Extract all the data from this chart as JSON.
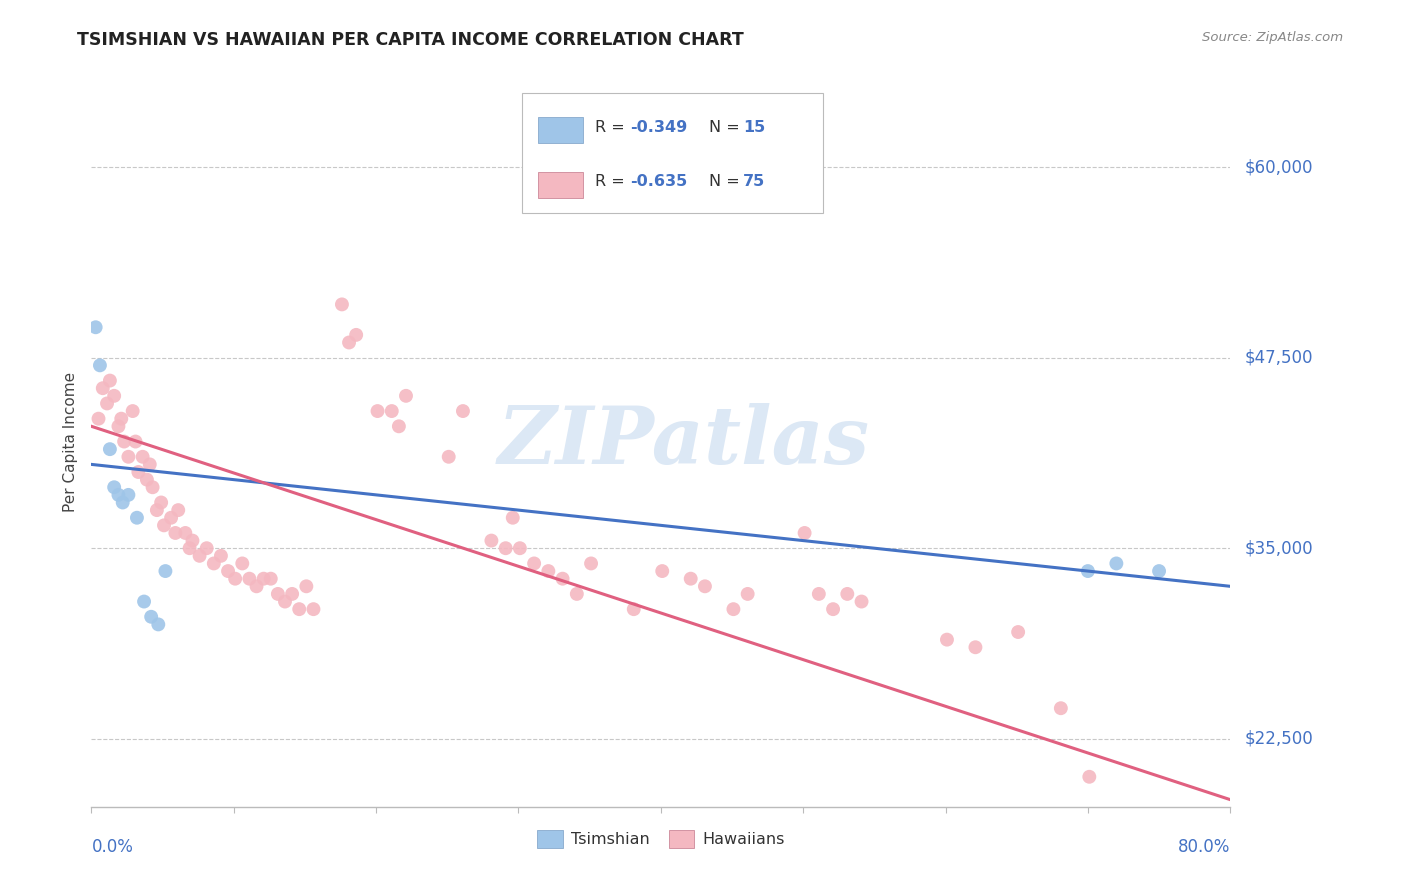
{
  "title": "TSIMSHIAN VS HAWAIIAN PER CAPITA INCOME CORRELATION CHART",
  "source": "Source: ZipAtlas.com",
  "ylabel": "Per Capita Income",
  "yticks": [
    22500,
    35000,
    47500,
    60000
  ],
  "ytick_labels": [
    "$22,500",
    "$35,000",
    "$47,500",
    "$60,000"
  ],
  "xlim": [
    0.0,
    0.8
  ],
  "ylim": [
    18000,
    66000
  ],
  "background_color": "#ffffff",
  "grid_color": "#c8c8c8",
  "watermark_text": "ZIPatlas",
  "watermark_color": "#dce8f5",
  "label_color": "#4472c4",
  "tsimshian_color": "#9fc5e8",
  "hawaiian_color": "#f4b8c1",
  "tsimshian_line_color": "#4472c4",
  "hawaiian_line_color": "#e06080",
  "legend_R1": "R = -0.349",
  "legend_N1": "N = 15",
  "legend_R2": "R = -0.635",
  "legend_N2": "N = 75",
  "tsimshian_line_x": [
    0.0,
    0.8
  ],
  "tsimshian_line_y": [
    40500,
    32500
  ],
  "hawaiian_line_x": [
    0.0,
    0.8
  ],
  "hawaiian_line_y": [
    43000,
    18500
  ],
  "tsimshian_points": [
    [
      0.003,
      49500
    ],
    [
      0.006,
      47000
    ],
    [
      0.013,
      41500
    ],
    [
      0.016,
      39000
    ],
    [
      0.019,
      38500
    ],
    [
      0.022,
      38000
    ],
    [
      0.026,
      38500
    ],
    [
      0.032,
      37000
    ],
    [
      0.037,
      31500
    ],
    [
      0.042,
      30500
    ],
    [
      0.047,
      30000
    ],
    [
      0.052,
      33500
    ],
    [
      0.7,
      33500
    ],
    [
      0.72,
      34000
    ],
    [
      0.75,
      33500
    ]
  ],
  "hawaiian_points": [
    [
      0.005,
      43500
    ],
    [
      0.008,
      45500
    ],
    [
      0.011,
      44500
    ],
    [
      0.013,
      46000
    ],
    [
      0.016,
      45000
    ],
    [
      0.019,
      43000
    ],
    [
      0.021,
      43500
    ],
    [
      0.023,
      42000
    ],
    [
      0.026,
      41000
    ],
    [
      0.029,
      44000
    ],
    [
      0.031,
      42000
    ],
    [
      0.033,
      40000
    ],
    [
      0.036,
      41000
    ],
    [
      0.039,
      39500
    ],
    [
      0.041,
      40500
    ],
    [
      0.043,
      39000
    ],
    [
      0.046,
      37500
    ],
    [
      0.049,
      38000
    ],
    [
      0.051,
      36500
    ],
    [
      0.056,
      37000
    ],
    [
      0.059,
      36000
    ],
    [
      0.061,
      37500
    ],
    [
      0.066,
      36000
    ],
    [
      0.069,
      35000
    ],
    [
      0.071,
      35500
    ],
    [
      0.076,
      34500
    ],
    [
      0.081,
      35000
    ],
    [
      0.086,
      34000
    ],
    [
      0.091,
      34500
    ],
    [
      0.096,
      33500
    ],
    [
      0.101,
      33000
    ],
    [
      0.106,
      34000
    ],
    [
      0.111,
      33000
    ],
    [
      0.116,
      32500
    ],
    [
      0.121,
      33000
    ],
    [
      0.126,
      33000
    ],
    [
      0.131,
      32000
    ],
    [
      0.136,
      31500
    ],
    [
      0.141,
      32000
    ],
    [
      0.146,
      31000
    ],
    [
      0.151,
      32500
    ],
    [
      0.156,
      31000
    ],
    [
      0.176,
      51000
    ],
    [
      0.181,
      48500
    ],
    [
      0.186,
      49000
    ],
    [
      0.201,
      44000
    ],
    [
      0.211,
      44000
    ],
    [
      0.216,
      43000
    ],
    [
      0.221,
      45000
    ],
    [
      0.251,
      41000
    ],
    [
      0.261,
      44000
    ],
    [
      0.281,
      35500
    ],
    [
      0.291,
      35000
    ],
    [
      0.296,
      37000
    ],
    [
      0.301,
      35000
    ],
    [
      0.311,
      34000
    ],
    [
      0.321,
      33500
    ],
    [
      0.331,
      33000
    ],
    [
      0.341,
      32000
    ],
    [
      0.351,
      34000
    ],
    [
      0.381,
      31000
    ],
    [
      0.401,
      33500
    ],
    [
      0.421,
      33000
    ],
    [
      0.431,
      32500
    ],
    [
      0.451,
      31000
    ],
    [
      0.461,
      32000
    ],
    [
      0.501,
      36000
    ],
    [
      0.511,
      32000
    ],
    [
      0.521,
      31000
    ],
    [
      0.531,
      32000
    ],
    [
      0.541,
      31500
    ],
    [
      0.601,
      29000
    ],
    [
      0.621,
      28500
    ],
    [
      0.651,
      29500
    ],
    [
      0.681,
      24500
    ],
    [
      0.701,
      20000
    ]
  ]
}
